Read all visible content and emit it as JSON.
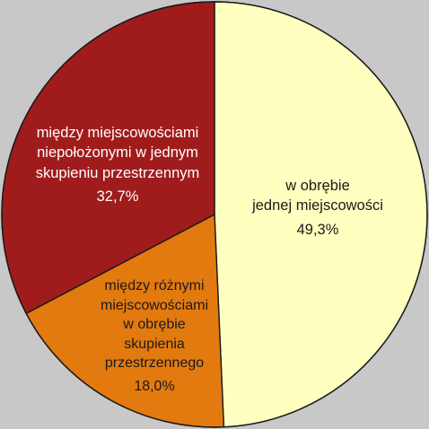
{
  "chart_data": {
    "type": "pie",
    "title": "",
    "start_angle_deg": 0,
    "direction": "clockwise",
    "slices": [
      {
        "label_lines": [
          "w obrębie",
          "jednej miejscowości"
        ],
        "value": 49.3,
        "value_label": "49,3%",
        "color": "#ffffc0",
        "text_color": "#1a1a1a"
      },
      {
        "label_lines": [
          "między różnymi",
          "miejscowościami",
          "w obrębie",
          "skupienia",
          "przestrzennego"
        ],
        "value": 18.0,
        "value_label": "18,0%",
        "color": "#e27a0f",
        "text_color": "#1a1a1a"
      },
      {
        "label_lines": [
          "między miejscowościami",
          "niepołożonymi w jednym",
          "skupieniu przestrzennym"
        ],
        "value": 32.7,
        "value_label": "32,7%",
        "color": "#a01c1c",
        "text_color": "#ffffff"
      }
    ],
    "legend": "none"
  }
}
